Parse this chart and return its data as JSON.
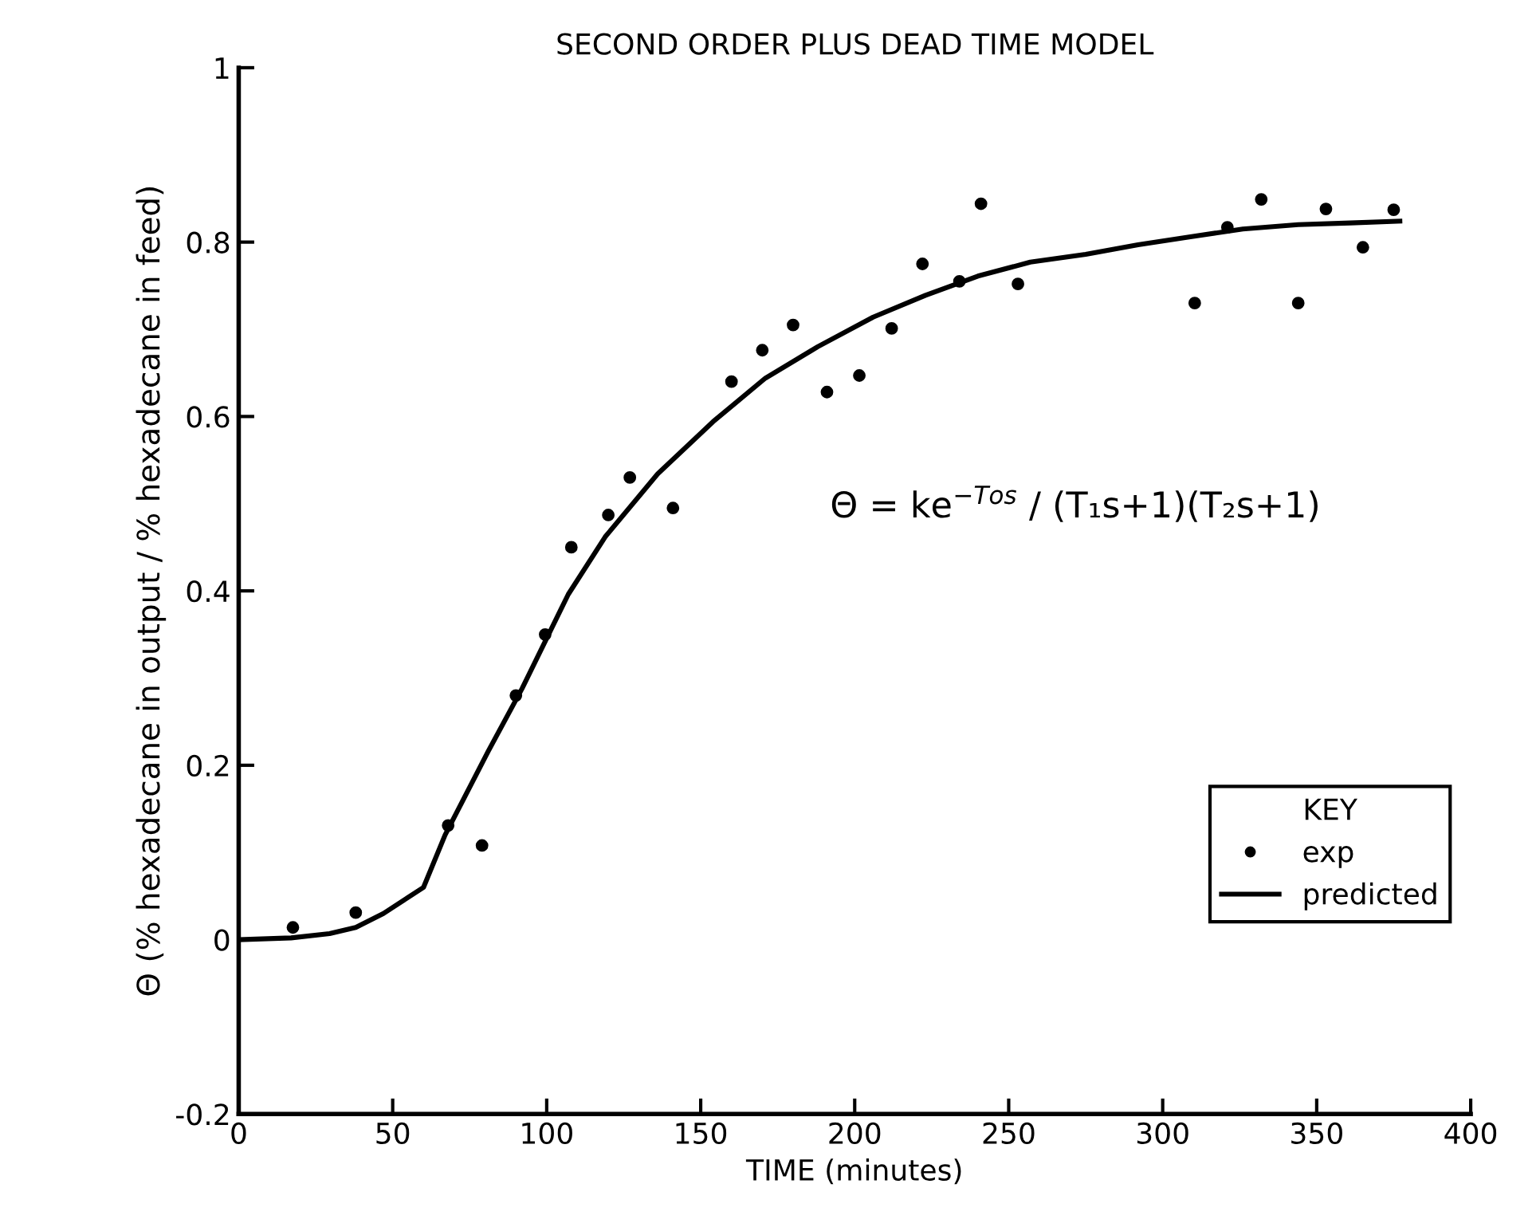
{
  "chart_data": {
    "type": "scatter",
    "title": "SECOND ORDER PLUS DEAD TIME MODEL",
    "xlabel": "TIME (minutes)",
    "ylabel": "Θ (% hexadecane in output / % hexadecane in feed)",
    "legend_title": "KEY",
    "legend": "bottom right",
    "xlim": [
      0,
      400
    ],
    "xticks": [
      0,
      50,
      100,
      150,
      200,
      250,
      300,
      350,
      400
    ],
    "ylim": [
      -0.2,
      1
    ],
    "yticks": [
      -0.2,
      0,
      0.2,
      0.4,
      0.6,
      0.8,
      1
    ],
    "grid": false,
    "series": [
      {
        "name": "exp",
        "marker": "circle",
        "color": "#000000",
        "x": [
          17.6,
          38,
          68,
          79,
          90,
          99.5,
          108,
          120,
          127,
          141,
          160,
          170,
          180,
          191,
          201.5,
          212,
          222,
          234,
          241,
          253,
          310.4,
          321,
          332,
          344,
          353,
          365,
          375
        ],
        "values": [
          0.014,
          0.031,
          0.131,
          0.108,
          0.28,
          0.35,
          0.45,
          0.487,
          0.53,
          0.495,
          0.64,
          0.676,
          0.705,
          0.628,
          0.647,
          0.701,
          0.775,
          0.755,
          0.844,
          0.752,
          0.73,
          0.817,
          0.849,
          0.73,
          0.838,
          0.794,
          0.837
        ]
      },
      {
        "name": "predicted",
        "type": "line",
        "marker": "none",
        "line_style": "solid",
        "color": "#000000",
        "x": [
          0,
          17,
          29.5,
          38,
          47,
          60,
          67,
          81,
          92,
          107,
          119,
          136,
          154,
          171,
          188,
          206,
          223,
          240,
          257,
          275,
          292,
          309,
          326,
          344,
          361,
          377
        ],
        "values": [
          0,
          0.002,
          0.007,
          0.014,
          0.03,
          0.06,
          0.12,
          0.216,
          0.288,
          0.396,
          0.462,
          0.534,
          0.594,
          0.644,
          0.68,
          0.714,
          0.739,
          0.761,
          0.777,
          0.786,
          0.797,
          0.806,
          0.815,
          0.82,
          0.822,
          0.824
        ]
      }
    ],
    "annotations": [
      {
        "text": "Θ = ke$^{−Tos}$ / (T₁s+1)(T₂s+1)"
      }
    ]
  }
}
